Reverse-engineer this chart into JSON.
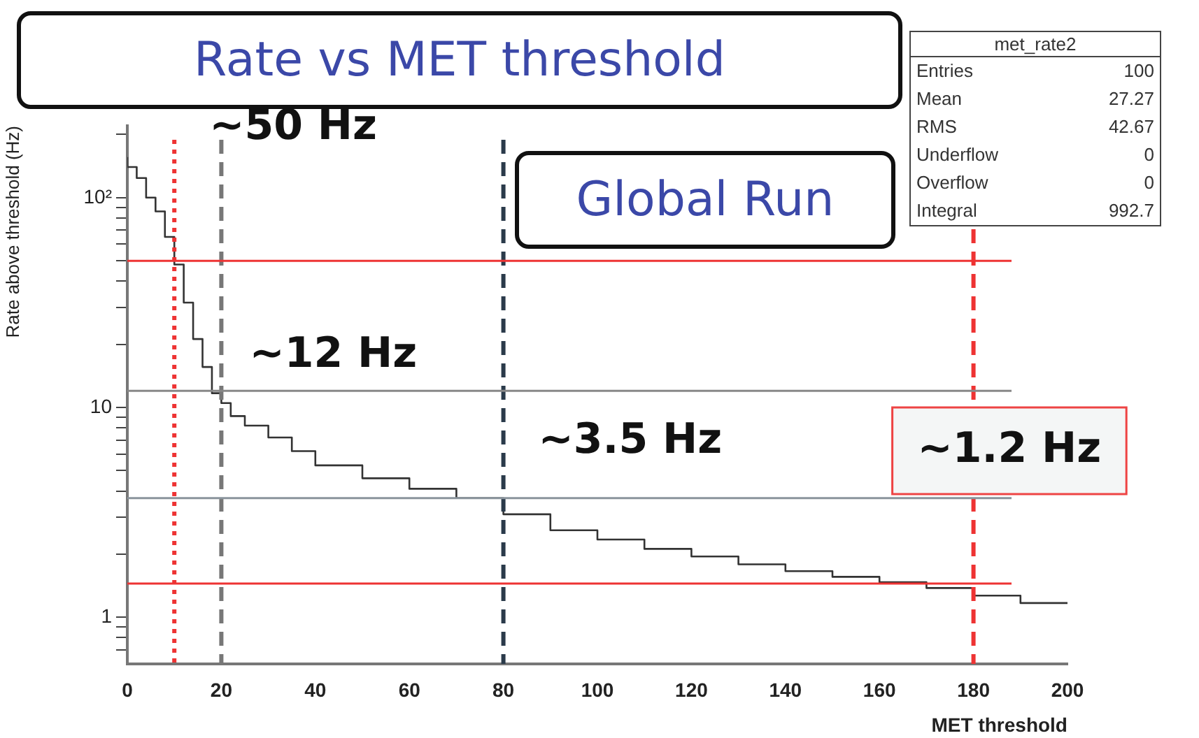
{
  "chart_data": {
    "type": "step",
    "title": "Rate vs MET threshold",
    "xlabel": "MET threshold",
    "ylabel": "Rate above threshold (Hz)",
    "x": [
      0,
      2,
      4,
      6,
      8,
      10,
      12,
      14,
      16,
      18,
      20,
      22,
      25,
      30,
      35,
      40,
      50,
      60,
      70,
      80,
      90,
      100,
      110,
      120,
      130,
      140,
      150,
      160,
      170,
      180,
      190,
      200
    ],
    "series": [
      {
        "color": "#333333",
        "values": [
          156,
          140,
          124,
          100,
          86,
          65,
          48,
          31.6,
          21.2,
          15.6,
          11.7,
          10.5,
          9.1,
          8.2,
          7.2,
          6.2,
          5.3,
          4.6,
          4.1,
          3.7,
          3.1,
          2.6,
          2.35,
          2.12,
          1.95,
          1.79,
          1.66,
          1.56,
          1.47,
          1.38,
          1.27,
          1.17
        ]
      }
    ],
    "xlim": [
      0,
      200
    ],
    "xticks": [
      0,
      20,
      40,
      60,
      80,
      100,
      120,
      140,
      160,
      180,
      200
    ],
    "ylim": [
      0.6,
      220
    ],
    "log": "y",
    "yticks": [
      {
        "value": 0.7,
        "label": null
      },
      {
        "value": 0.8,
        "label": null
      },
      {
        "value": 0.9,
        "label": null
      },
      1,
      {
        "value": 2,
        "label": null
      },
      {
        "value": 3,
        "label": null
      },
      {
        "value": 4,
        "label": null
      },
      {
        "value": 5,
        "label": null
      },
      {
        "value": 6,
        "label": null
      },
      {
        "value": 7,
        "label": null
      },
      {
        "value": 8,
        "label": null
      },
      {
        "value": 9,
        "label": null
      },
      10,
      {
        "value": 20,
        "label": null
      },
      {
        "value": 30,
        "label": null
      },
      {
        "value": 40,
        "label": null
      },
      {
        "value": 50,
        "label": null
      },
      {
        "value": 60,
        "label": null
      },
      {
        "value": 70,
        "label": null
      },
      {
        "value": 80,
        "label": null
      },
      {
        "value": 90,
        "label": null
      },
      {
        "value": 100,
        "label": "10²"
      },
      {
        "value": 200,
        "label": null
      }
    ],
    "ref_lines": [
      {
        "axis": "x",
        "value": 10,
        "color": "#ee3333",
        "line_style": "dotted"
      },
      {
        "axis": "x",
        "value": 20,
        "color": "#777777",
        "line_style": "dashed"
      },
      {
        "axis": "x",
        "value": 80,
        "color": "#2a3a4a",
        "line_style": "dashed"
      },
      {
        "axis": "x",
        "value": 180,
        "color": "#ee3333",
        "line_style": "dashed"
      },
      {
        "axis": "y",
        "value": 50,
        "color": "#ee3333",
        "line_style": "solid"
      },
      {
        "axis": "y",
        "value": 12,
        "color": "#888888",
        "line_style": "solid"
      },
      {
        "axis": "y",
        "value": 3.7,
        "color": "#8a949c",
        "line_style": "solid"
      },
      {
        "axis": "y",
        "value": 1.45,
        "color": "#ee3333",
        "line_style": "solid"
      }
    ],
    "grid": false,
    "legend": false,
    "marker": "none",
    "line_style": "solid",
    "annotations": [
      {
        "text": "~50 Hz",
        "x": 10,
        "y": 50
      },
      {
        "text": "~12 Hz",
        "x": 20,
        "y": 12
      },
      {
        "text": "~3.5 Hz",
        "x": 80,
        "y": 3.7
      },
      {
        "text": "~1.2 Hz",
        "x": 180,
        "y": 1.45
      },
      "Global Run",
      "met_rate2",
      "Entries 100",
      "Mean 27.27",
      "RMS 42.67",
      "Underflow 0",
      "Overflow 0",
      "Integral 992.7"
    ]
  }
}
